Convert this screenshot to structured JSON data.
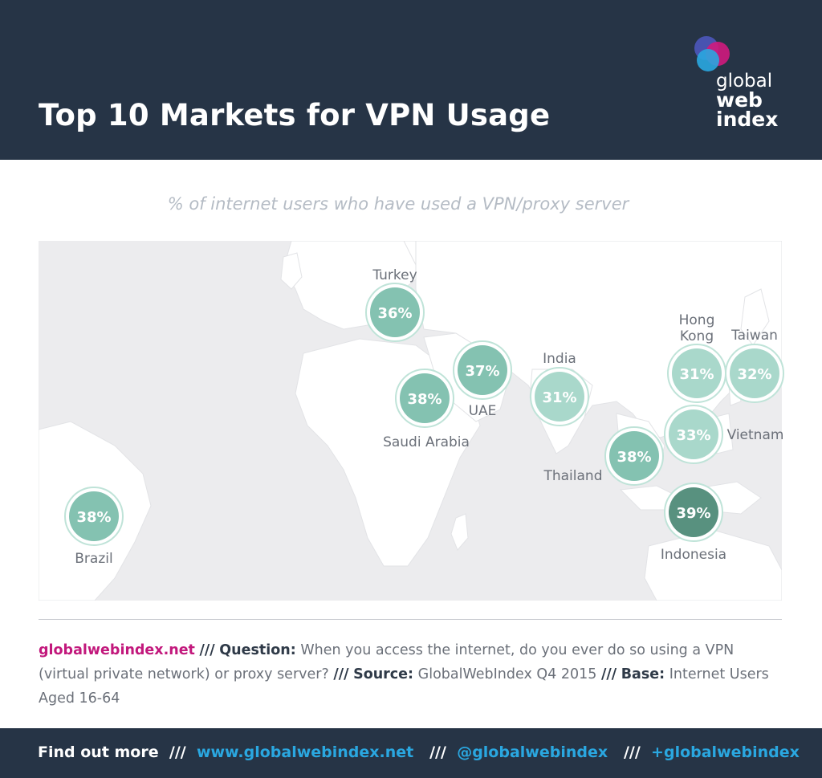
{
  "header": {
    "title": "Top 10 Markets for VPN Usage",
    "logo": {
      "line1": "global",
      "line2": "web",
      "line3": "index"
    }
  },
  "subtitle": "% of internet users who have used a VPN/proxy server",
  "chart_data": {
    "type": "bubble-map",
    "title": "Top 10 Markets for VPN Usage",
    "subtitle": "% of internet users who have used a VPN/proxy server",
    "unit": "%",
    "points": [
      {
        "country": "Turkey",
        "value": 36,
        "label": "36%"
      },
      {
        "country": "UAE",
        "value": 37,
        "label": "37%"
      },
      {
        "country": "Saudi Arabia",
        "value": 38,
        "label": "38%"
      },
      {
        "country": "India",
        "value": 31,
        "label": "31%"
      },
      {
        "country": "Hong Kong",
        "value": 31,
        "label": "31%"
      },
      {
        "country": "Taiwan",
        "value": 32,
        "label": "32%"
      },
      {
        "country": "Vietnam",
        "value": 33,
        "label": "33%"
      },
      {
        "country": "Thailand",
        "value": 38,
        "label": "38%"
      },
      {
        "country": "Indonesia",
        "value": 39,
        "label": "39%"
      },
      {
        "country": "Brazil",
        "value": 38,
        "label": "38%"
      }
    ]
  },
  "note": {
    "site": "globalwebindex.net",
    "sep": "///",
    "question_label": "Question:",
    "question": "When you access the internet, do you ever do so using a VPN (virtual private network) or proxy server?",
    "source_label": "Source:",
    "source": "GlobalWebIndex Q4 2015",
    "base_label": "Base:",
    "base": "Internet Users Aged 16-64"
  },
  "footer": {
    "find_out_more": "Find out more",
    "sep": "///",
    "website": "www.globalwebindex.net",
    "twitter": "@globalwebindex",
    "gplus": "+globalwebindex"
  },
  "colors": {
    "header_bg": "#263446",
    "low": "#a9d8cb",
    "mid": "#84c2b1",
    "high": "#58917f",
    "link": "#2aa7e0",
    "brand_magenta": "#c2187c"
  }
}
